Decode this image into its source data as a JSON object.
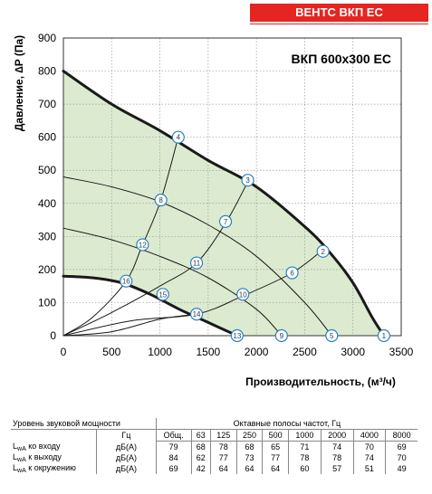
{
  "brand": "ВЕНТС ВКП ЕС",
  "chart_data": {
    "type": "line",
    "model_label": "ВКП  600x300 ЕС",
    "xlabel": "Производительность, (м³/ч)",
    "ylabel": "Давление, ∆P (Па)",
    "xlim": [
      0,
      3500
    ],
    "ylim": [
      0,
      900
    ],
    "x_ticks": [
      0,
      500,
      1000,
      1500,
      2000,
      2500,
      3000,
      3500
    ],
    "y_ticks": [
      0,
      100,
      200,
      300,
      400,
      500,
      600,
      700,
      800,
      900
    ],
    "grid": true,
    "colors": {
      "fill": "#dcebd0",
      "curve": "#1a1a1a",
      "marker_stroke": "#2f7fc0",
      "brand": "#e52521"
    },
    "series": [
      {
        "role": "max",
        "x": [
          0,
          500,
          1000,
          1500,
          2000,
          2500,
          2750,
          3000,
          3200,
          3320
        ],
        "y": [
          800,
          700,
          620,
          530,
          450,
          330,
          255,
          160,
          55,
          0
        ]
      },
      {
        "role": "mid",
        "x": [
          0,
          500,
          1000,
          1500,
          2000,
          2500,
          2780
        ],
        "y": [
          480,
          450,
          405,
          335,
          240,
          100,
          0
        ]
      },
      {
        "role": "mid",
        "x": [
          0,
          500,
          1000,
          1500,
          2000,
          2260
        ],
        "y": [
          325,
          290,
          240,
          175,
          80,
          0
        ]
      },
      {
        "role": "min",
        "x": [
          0,
          300,
          600,
          900,
          1200,
          1500,
          1800
        ],
        "y": [
          180,
          175,
          160,
          125,
          80,
          40,
          0
        ]
      },
      {
        "role": "system",
        "x": [
          0,
          300,
          650,
          820,
          1010,
          1190
        ],
        "y": [
          0,
          55,
          165,
          275,
          410,
          600
        ]
      },
      {
        "role": "system",
        "x": [
          0,
          500,
          1030,
          1380,
          1680,
          1910
        ],
        "y": [
          0,
          70,
          155,
          220,
          340,
          465
        ]
      },
      {
        "role": "system",
        "x": [
          0,
          700,
          1380,
          1860,
          2370,
          2690
        ],
        "y": [
          0,
          45,
          65,
          120,
          190,
          260
        ]
      },
      {
        "role": "system",
        "x": [
          0,
          500,
          1000,
          1380
        ],
        "y": [
          0,
          12,
          50,
          65
        ]
      }
    ],
    "points": [
      {
        "label": "1",
        "x": 3320,
        "y": 0
      },
      {
        "label": "2",
        "x": 2690,
        "y": 255
      },
      {
        "label": "3",
        "x": 1910,
        "y": 470
      },
      {
        "label": "4",
        "x": 1190,
        "y": 600
      },
      {
        "label": "5",
        "x": 2780,
        "y": 0
      },
      {
        "label": "6",
        "x": 2370,
        "y": 190
      },
      {
        "label": "7",
        "x": 1680,
        "y": 345
      },
      {
        "label": "8",
        "x": 1010,
        "y": 410
      },
      {
        "label": "9",
        "x": 2260,
        "y": 0
      },
      {
        "label": "10",
        "x": 1860,
        "y": 125
      },
      {
        "label": "11",
        "x": 1380,
        "y": 220
      },
      {
        "label": "12",
        "x": 820,
        "y": 275
      },
      {
        "label": "13",
        "x": 1800,
        "y": 0
      },
      {
        "label": "14",
        "x": 1380,
        "y": 65
      },
      {
        "label": "15",
        "x": 1030,
        "y": 125
      },
      {
        "label": "16",
        "x": 650,
        "y": 165
      }
    ]
  },
  "sound_table": {
    "title_label": "Уровень звуковой мощности",
    "bands_title": "Октавные полосы частот, Гц",
    "unit_header": "Гц",
    "bands": [
      "Общ.",
      "63",
      "125",
      "250",
      "500",
      "1000",
      "2000",
      "4000",
      "8000"
    ],
    "rows": [
      {
        "pre": "L",
        "sub": "wA",
        "post": " ко входу",
        "unit": "дБ(А)",
        "values": [
          "79",
          "68",
          "78",
          "68",
          "65",
          "71",
          "74",
          "70",
          "69"
        ]
      },
      {
        "pre": "L",
        "sub": "wA",
        "post": " к выходу",
        "unit": "дБ(А)",
        "values": [
          "84",
          "62",
          "77",
          "73",
          "77",
          "78",
          "78",
          "74",
          "70"
        ]
      },
      {
        "pre": "L",
        "sub": "wA",
        "post": " к окружению",
        "unit": "дБ(А)",
        "values": [
          "69",
          "42",
          "64",
          "64",
          "64",
          "60",
          "57",
          "51",
          "49"
        ]
      }
    ]
  }
}
